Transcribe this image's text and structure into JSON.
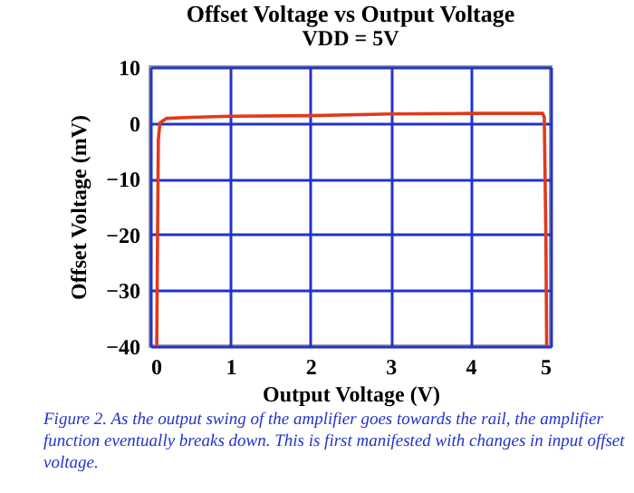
{
  "chart_data": {
    "type": "line",
    "title": "Offset Voltage vs Output Voltage",
    "subtitle": "VDD = 5V",
    "xlabel": "Output Voltage (V)",
    "ylabel": "Offset Voltage (mV)",
    "x": [
      0.08,
      0.09,
      0.1,
      0.12,
      0.2,
      0.5,
      1,
      2,
      3,
      4,
      4.9,
      4.92,
      4.94,
      4.95
    ],
    "series": [
      {
        "color": "#e03a1a",
        "values": [
          -40,
          -20,
          -3,
          0,
          0.8,
          1,
          1.2,
          1.3,
          1.6,
          1.7,
          1.7,
          1,
          -20,
          -40
        ]
      }
    ],
    "xlim": [
      0,
      5
    ],
    "xticks": [
      0,
      1,
      2,
      3,
      4,
      5
    ],
    "ylim": [
      -40,
      10
    ],
    "yticks": [
      -40,
      -30,
      -20,
      -10,
      0,
      10
    ],
    "grid": true,
    "marker": "none",
    "line_style": "solid",
    "annotations": [
      "Figure 2. As the output swing of the amplifier goes towards the rail, the amplifier function eventually breaks down. This is first manifested with changes in input offset voltage."
    ]
  }
}
